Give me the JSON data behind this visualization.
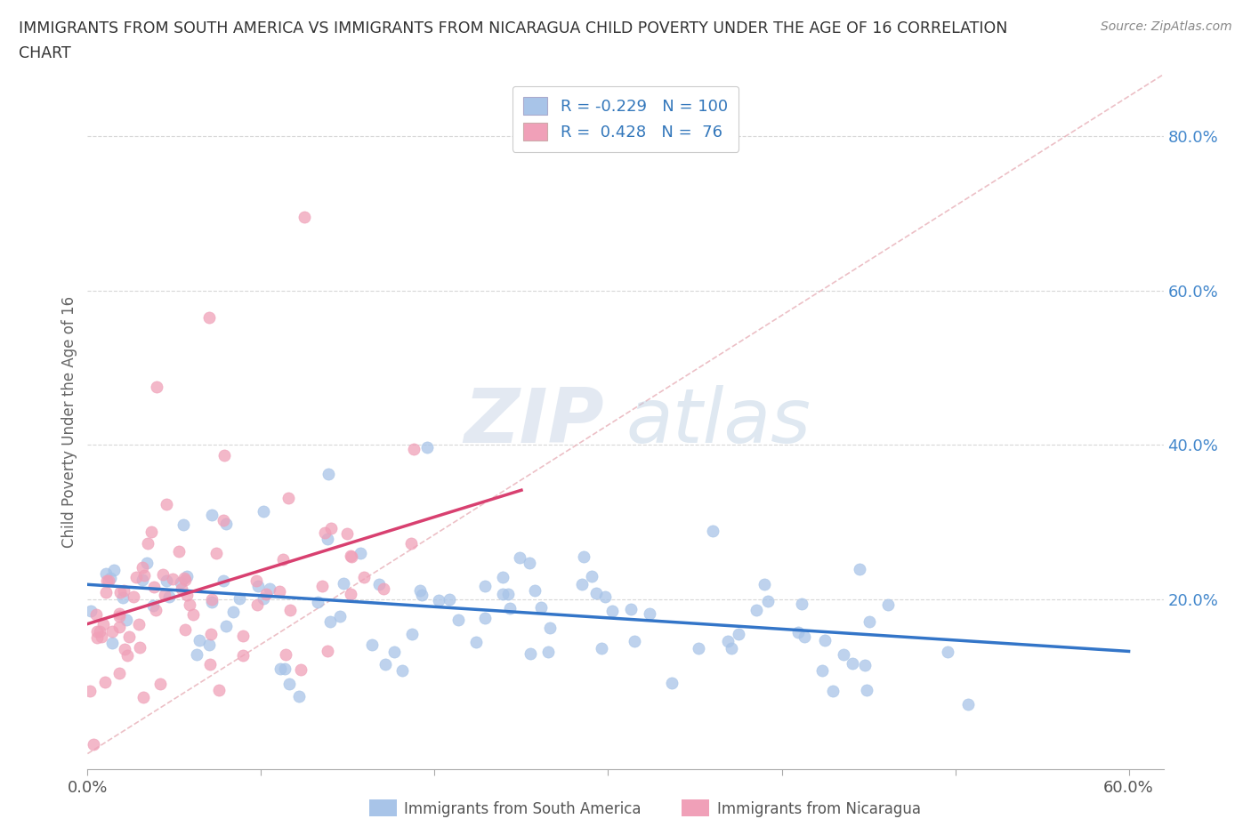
{
  "title_line1": "IMMIGRANTS FROM SOUTH AMERICA VS IMMIGRANTS FROM NICARAGUA CHILD POVERTY UNDER THE AGE OF 16 CORRELATION",
  "title_line2": "CHART",
  "source": "Source: ZipAtlas.com",
  "ylabel": "Child Poverty Under the Age of 16",
  "xlim": [
    0.0,
    0.62
  ],
  "ylim": [
    -0.02,
    0.88
  ],
  "xtick_positions": [
    0.0,
    0.1,
    0.2,
    0.3,
    0.4,
    0.5,
    0.6
  ],
  "xticklabels": [
    "0.0%",
    "",
    "",
    "",
    "",
    "",
    "60.0%"
  ],
  "ytick_positions": [
    0.2,
    0.4,
    0.6,
    0.8
  ],
  "ytick_labels": [
    "20.0%",
    "40.0%",
    "60.0%",
    "80.0%"
  ],
  "legend1_R": "-0.229",
  "legend1_N": "100",
  "legend2_R": " 0.428",
  "legend2_N": " 76",
  "blue_color": "#a8c4e8",
  "pink_color": "#f0a0b8",
  "blue_line_color": "#3375c8",
  "pink_line_color": "#d84070",
  "blue_R": -0.229,
  "blue_N": 100,
  "pink_R": 0.428,
  "pink_N": 76,
  "watermark_ZIP": "ZIP",
  "watermark_atlas": "atlas",
  "background_color": "#ffffff",
  "grid_color": "#c8c8c8",
  "diagonal_color": "#e8b0b8"
}
